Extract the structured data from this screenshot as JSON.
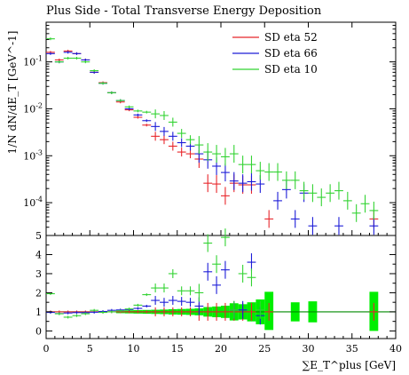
{
  "chart_data": {
    "type": "scatter",
    "title": "Plus Side - Total Transverse Energy Deposition",
    "xlabel": "∑E_T^plus [GeV]",
    "ylabel": "1/N dN/dE_T [GeV^-1]",
    "xlim": [
      0,
      40
    ],
    "ylim_main": [
      2e-05,
      0.7
    ],
    "ylim_ratio": [
      -0.4,
      5
    ],
    "yscale_main": "log",
    "x_ticks": [
      "0",
      "5",
      "10",
      "15",
      "20",
      "25",
      "30",
      "35",
      "40"
    ],
    "y_ticks_main": [
      "10^-4",
      "10^-3",
      "10^-2",
      "10^-1"
    ],
    "y_ticks_ratio": [
      "0",
      "1",
      "2",
      "3",
      "4",
      "5"
    ],
    "legend_position": "top-right",
    "colors": {
      "red": "#e8262b",
      "blue": "#1c1cd8",
      "green": "#32d332",
      "band": "#00ee00"
    },
    "series": [
      {
        "name": "SD eta 52",
        "color": "#e8262b",
        "points": [
          [
            0.5,
            0.16
          ],
          [
            1.5,
            0.11
          ],
          [
            2.5,
            0.17
          ],
          [
            3.5,
            0.15
          ],
          [
            4.5,
            0.11
          ],
          [
            5.5,
            0.06
          ],
          [
            6.5,
            0.036
          ],
          [
            7.5,
            0.022
          ],
          [
            8.5,
            0.014
          ],
          [
            9.5,
            0.0095
          ],
          [
            10.5,
            0.0066
          ],
          [
            11.5,
            0.0045
          ],
          [
            12.5,
            0.0026
          ],
          [
            13.5,
            0.0022
          ],
          [
            14.5,
            0.0016
          ],
          [
            15.5,
            0.0012
          ],
          [
            16.5,
            0.0011
          ],
          [
            17.5,
            0.00085
          ],
          [
            18.5,
            0.00026
          ],
          [
            19.5,
            0.00025
          ],
          [
            20.5,
            0.00014
          ],
          [
            21.5,
            0.00026
          ],
          [
            22.5,
            0.00024
          ],
          [
            23.5,
            0.00024
          ],
          [
            25.5,
            4.5e-05
          ],
          [
            37.5,
            4.5e-05
          ]
        ]
      },
      {
        "name": "SD eta 66",
        "color": "#1c1cd8",
        "points": [
          [
            0.5,
            0.15
          ],
          [
            1.5,
            0.1
          ],
          [
            2.5,
            0.16
          ],
          [
            3.5,
            0.15
          ],
          [
            4.5,
            0.11
          ],
          [
            5.5,
            0.06
          ],
          [
            6.5,
            0.035
          ],
          [
            7.5,
            0.022
          ],
          [
            8.5,
            0.015
          ],
          [
            9.5,
            0.01
          ],
          [
            10.5,
            0.0074
          ],
          [
            11.5,
            0.0056
          ],
          [
            12.5,
            0.0042
          ],
          [
            13.5,
            0.0033
          ],
          [
            14.5,
            0.0026
          ],
          [
            15.5,
            0.0019
          ],
          [
            16.5,
            0.0016
          ],
          [
            17.5,
            0.0011
          ],
          [
            18.5,
            0.00082
          ],
          [
            19.5,
            0.0006
          ],
          [
            20.5,
            0.00044
          ],
          [
            21.5,
            0.00029
          ],
          [
            22.5,
            0.00026
          ],
          [
            23.5,
            0.00028
          ],
          [
            24.5,
            0.00025
          ],
          [
            26.5,
            0.00011
          ],
          [
            27.5,
            0.00019
          ],
          [
            28.5,
            4.5e-05
          ],
          [
            29.5,
            0.00016
          ],
          [
            30.5,
            3.2e-05
          ],
          [
            33.5,
            3.2e-05
          ],
          [
            37.5,
            3.2e-05
          ]
        ]
      },
      {
        "name": "SD eta 10",
        "color": "#32d332",
        "points": [
          [
            0.5,
            0.31
          ],
          [
            1.5,
            0.1
          ],
          [
            2.5,
            0.12
          ],
          [
            3.5,
            0.12
          ],
          [
            4.5,
            0.1
          ],
          [
            5.5,
            0.065
          ],
          [
            6.5,
            0.035
          ],
          [
            7.5,
            0.022
          ],
          [
            8.5,
            0.015
          ],
          [
            9.5,
            0.011
          ],
          [
            10.5,
            0.009
          ],
          [
            11.5,
            0.0085
          ],
          [
            12.5,
            0.0078
          ],
          [
            13.5,
            0.0072
          ],
          [
            14.5,
            0.0052
          ],
          [
            15.5,
            0.003
          ],
          [
            16.5,
            0.0022
          ],
          [
            17.5,
            0.0017
          ],
          [
            18.5,
            0.0012
          ],
          [
            19.5,
            0.0011
          ],
          [
            20.5,
            0.00095
          ],
          [
            21.5,
            0.0011
          ],
          [
            22.5,
            0.00065
          ],
          [
            23.5,
            0.00065
          ],
          [
            24.5,
            0.00048
          ],
          [
            25.5,
            0.00045
          ],
          [
            26.5,
            0.00045
          ],
          [
            27.5,
            0.0003
          ],
          [
            28.5,
            0.0003
          ],
          [
            29.5,
            0.00018
          ],
          [
            30.5,
            0.00016
          ],
          [
            31.5,
            0.00013
          ],
          [
            32.5,
            0.00016
          ],
          [
            33.5,
            0.00018
          ],
          [
            34.5,
            0.00011
          ],
          [
            35.5,
            6e-05
          ],
          [
            36.5,
            9.5e-05
          ],
          [
            37.5,
            6.8e-05
          ]
        ]
      }
    ],
    "ratio_series": [
      {
        "name": "SD eta 52",
        "color": "#e8262b",
        "points": [
          [
            0.5,
            1.0
          ],
          [
            1.5,
            1.0
          ],
          [
            2.5,
            1.0
          ],
          [
            3.5,
            1.0
          ],
          [
            4.5,
            1.0
          ],
          [
            5.5,
            1.0
          ],
          [
            6.5,
            1.0
          ],
          [
            7.5,
            1.0
          ],
          [
            8.5,
            1.0
          ],
          [
            9.5,
            1.0
          ],
          [
            10.5,
            1.0
          ],
          [
            11.5,
            1.0
          ],
          [
            12.5,
            1.0
          ],
          [
            13.5,
            1.0
          ],
          [
            14.5,
            1.0
          ],
          [
            15.5,
            1.0
          ],
          [
            16.5,
            1.0
          ],
          [
            17.5,
            1.0
          ],
          [
            18.5,
            1.0
          ],
          [
            19.5,
            1.0
          ],
          [
            20.5,
            1.0
          ],
          [
            21.5,
            1.0
          ],
          [
            22.5,
            1.0
          ],
          [
            23.5,
            1.0
          ],
          [
            25.5,
            1.0
          ],
          [
            37.5,
            1.0
          ]
        ]
      },
      {
        "name": "SD eta 66",
        "color": "#1c1cd8",
        "points": [
          [
            0.5,
            0.97
          ],
          [
            1.5,
            0.91
          ],
          [
            2.5,
            0.94
          ],
          [
            3.5,
            0.96
          ],
          [
            4.5,
            0.96
          ],
          [
            5.5,
            0.98
          ],
          [
            6.5,
            1.02
          ],
          [
            7.5,
            1.08
          ],
          [
            8.5,
            1.1
          ],
          [
            9.5,
            1.12
          ],
          [
            10.5,
            1.18
          ],
          [
            11.5,
            1.3
          ],
          [
            12.5,
            1.6
          ],
          [
            13.5,
            1.5
          ],
          [
            14.5,
            1.6
          ],
          [
            15.5,
            1.55
          ],
          [
            16.5,
            1.5
          ],
          [
            17.5,
            1.3
          ],
          [
            18.5,
            3.1
          ],
          [
            19.5,
            2.4
          ],
          [
            20.5,
            3.2
          ],
          [
            21.5,
            1.1
          ],
          [
            22.5,
            1.1
          ],
          [
            23.5,
            3.6
          ],
          [
            24.5,
            0.8
          ]
        ]
      },
      {
        "name": "SD eta 10",
        "color": "#32d332",
        "points": [
          [
            0.5,
            1.95
          ],
          [
            1.5,
            0.9
          ],
          [
            2.5,
            0.72
          ],
          [
            3.5,
            0.8
          ],
          [
            4.5,
            0.9
          ],
          [
            5.5,
            1.08
          ],
          [
            6.5,
            0.97
          ],
          [
            7.5,
            1.0
          ],
          [
            8.5,
            1.05
          ],
          [
            9.5,
            1.15
          ],
          [
            10.5,
            1.35
          ],
          [
            11.5,
            1.9
          ],
          [
            12.5,
            2.25
          ],
          [
            13.5,
            2.25
          ],
          [
            14.5,
            3.0
          ],
          [
            15.5,
            2.1
          ],
          [
            16.5,
            2.1
          ],
          [
            17.5,
            2.0
          ],
          [
            18.5,
            4.6
          ],
          [
            19.5,
            3.5
          ],
          [
            20.5,
            4.9
          ],
          [
            21.5,
            1.1
          ],
          [
            22.5,
            3.0
          ],
          [
            23.5,
            2.8
          ],
          [
            24.5,
            1.1
          ]
        ]
      }
    ],
    "ratio_band": {
      "color": "#00ee00",
      "bins": [
        [
          8,
          9,
          0.93,
          1.07
        ],
        [
          9,
          10,
          0.92,
          1.08
        ],
        [
          10,
          11,
          0.91,
          1.09
        ],
        [
          11,
          12,
          0.9,
          1.1
        ],
        [
          12,
          13,
          0.89,
          1.11
        ],
        [
          13,
          14,
          0.88,
          1.12
        ],
        [
          14,
          15,
          0.86,
          1.14
        ],
        [
          15,
          16,
          0.85,
          1.15
        ],
        [
          16,
          17,
          0.84,
          1.16
        ],
        [
          17,
          18,
          0.82,
          1.18
        ],
        [
          18,
          19,
          0.75,
          1.25
        ],
        [
          19,
          20,
          0.72,
          1.28
        ],
        [
          20,
          21,
          0.68,
          1.32
        ],
        [
          21,
          22,
          0.55,
          1.45
        ],
        [
          22,
          23,
          0.6,
          1.4
        ],
        [
          23,
          24,
          0.5,
          1.5
        ],
        [
          24,
          25,
          0.35,
          1.65
        ],
        [
          25,
          26,
          0.05,
          2.05
        ],
        [
          28,
          29,
          0.5,
          1.5
        ],
        [
          30,
          31,
          0.45,
          1.55
        ],
        [
          37,
          38,
          0.0,
          2.05
        ]
      ]
    }
  }
}
